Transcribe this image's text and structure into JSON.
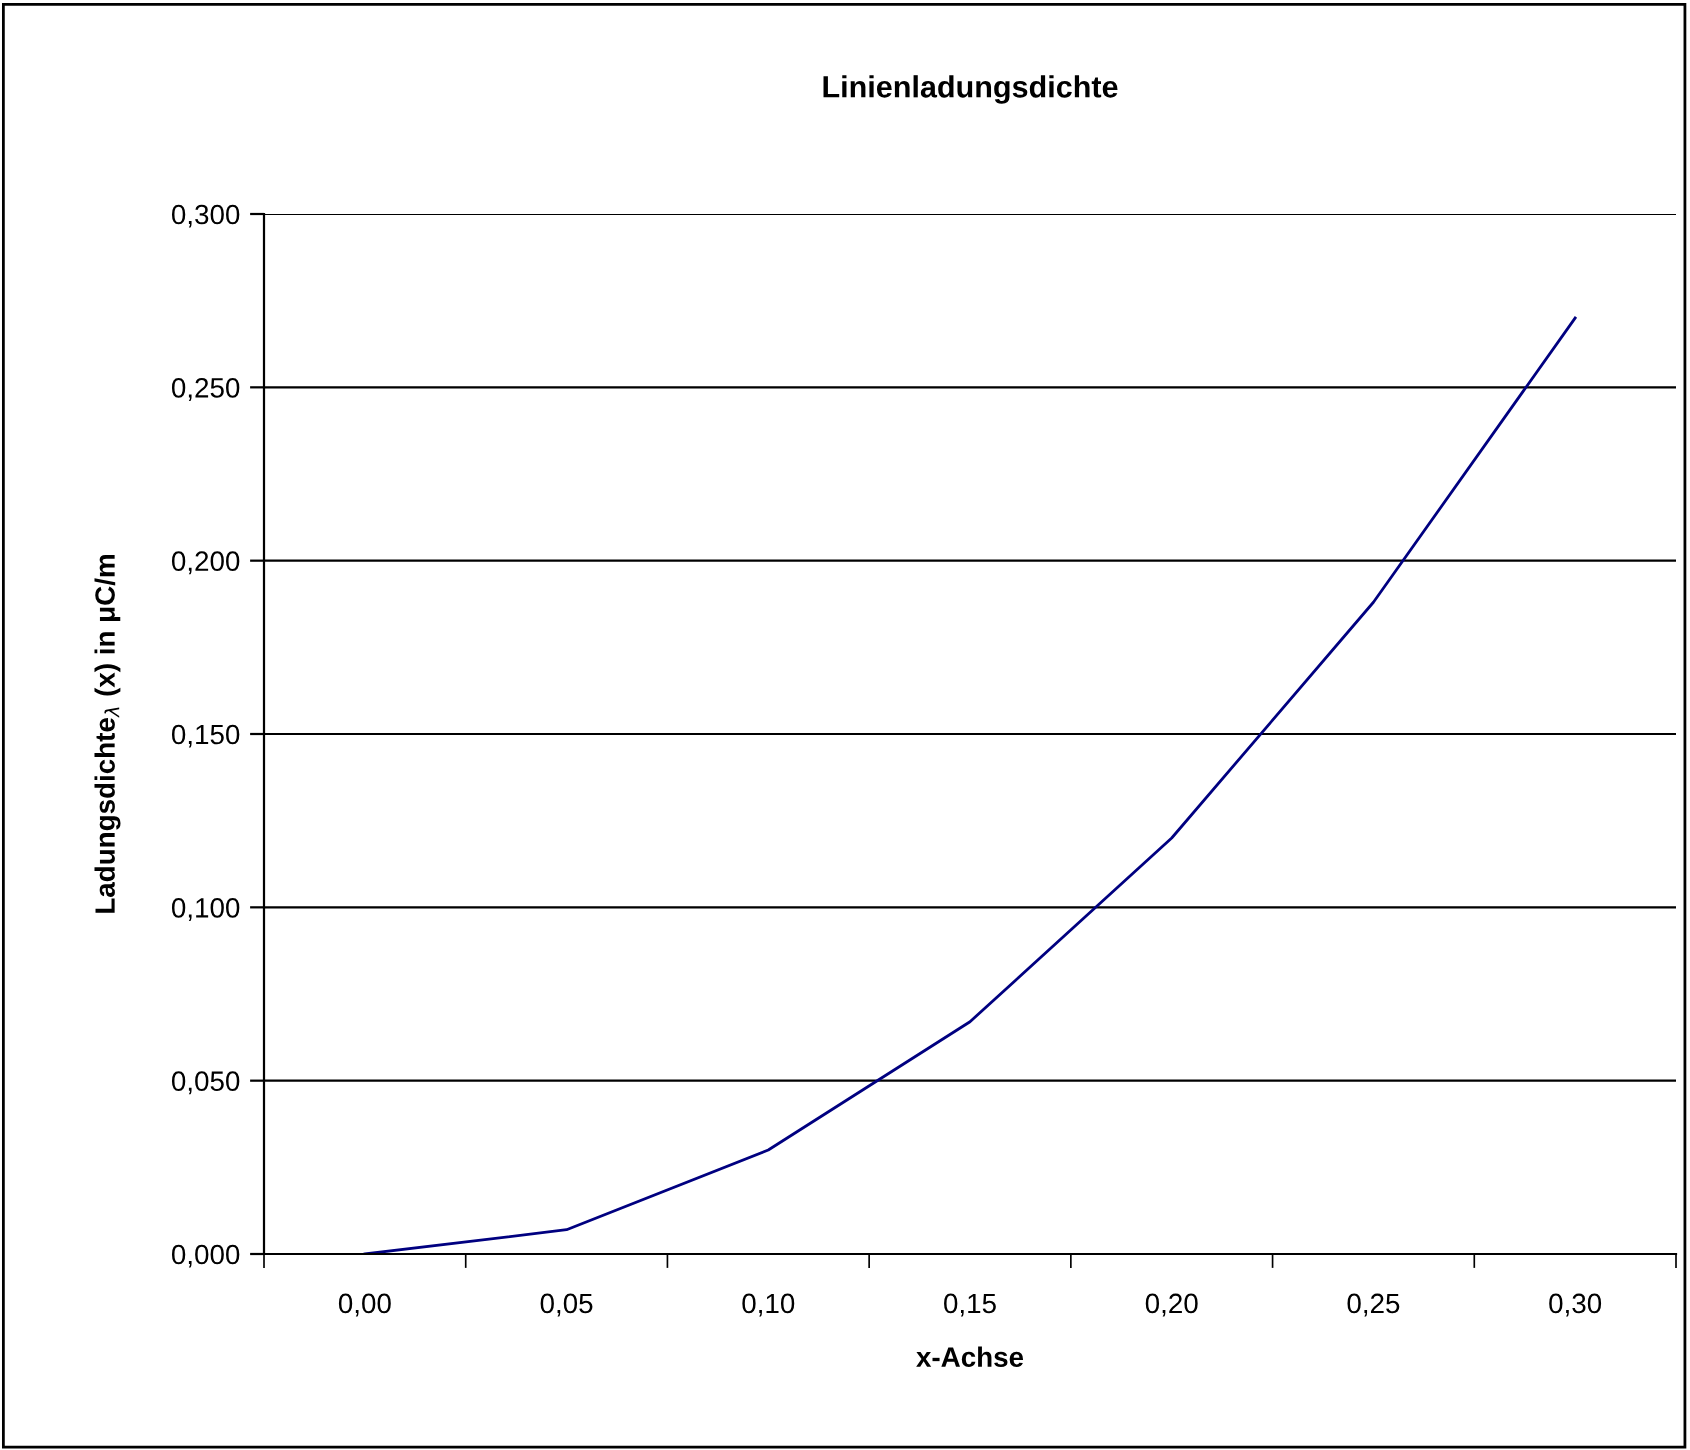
{
  "chart_data": {
    "type": "line",
    "title": "Linienladungsdichte",
    "xlabel": "x-Achse",
    "ylabel": "Ladungsdichte$_{λ}$ (x) in μC/m",
    "categories": [
      "0,00",
      "0,05",
      "0,10",
      "0,15",
      "0,20",
      "0,25",
      "0,30"
    ],
    "series": [
      {
        "color": "#000080",
        "values": [
          0.0,
          0.007,
          0.03,
          0.067,
          0.12,
          0.188,
          0.27
        ]
      }
    ],
    "ylim": [
      0,
      0.3
    ],
    "yticks": [
      {
        "value": 0,
        "label": "0,000"
      },
      {
        "value": 0.05,
        "label": "0,050"
      },
      {
        "value": 0.1,
        "label": "0,100"
      },
      {
        "value": 0.15,
        "label": "0,150"
      },
      {
        "value": 0.2,
        "label": "0,200"
      },
      {
        "value": 0.25,
        "label": "0,250"
      },
      {
        "value": 0.3,
        "label": "0,300"
      }
    ],
    "grid": "y",
    "marker": "none",
    "line_style": "solid"
  }
}
